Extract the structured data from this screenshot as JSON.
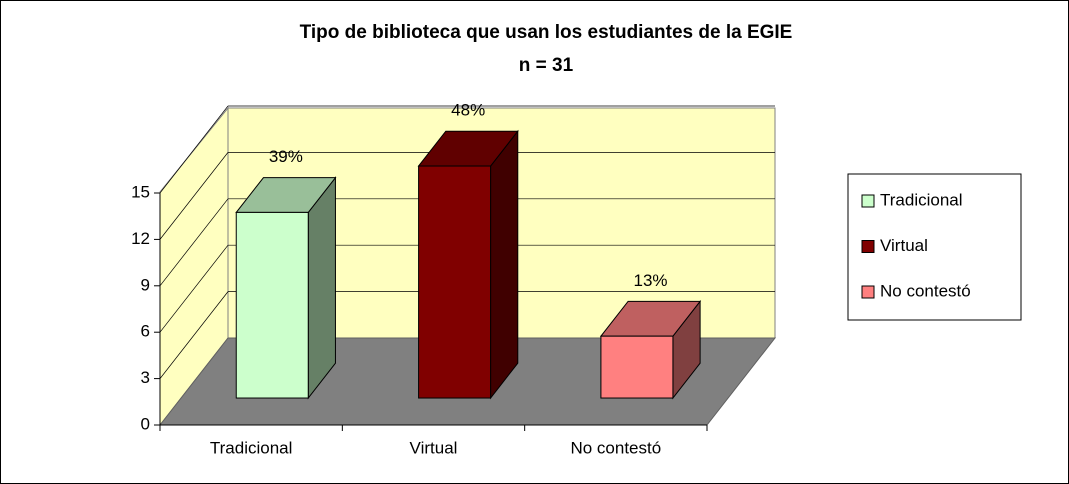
{
  "chart_data": {
    "type": "bar3d",
    "title": "Tipo de biblioteca que usan los estudiantes de la EGIE",
    "subtitle": "n = 31",
    "categories": [
      "Tradicional",
      "Virtual",
      "No contestó"
    ],
    "values": [
      12,
      15,
      4
    ],
    "data_labels": [
      "39%",
      "48%",
      "13%"
    ],
    "colors": [
      "#ccffcc",
      "#800000",
      "#ff8080"
    ],
    "ylim": [
      0,
      15
    ],
    "yticks": [
      0,
      3,
      6,
      9,
      12,
      15
    ],
    "grid": true,
    "legend": "right"
  }
}
